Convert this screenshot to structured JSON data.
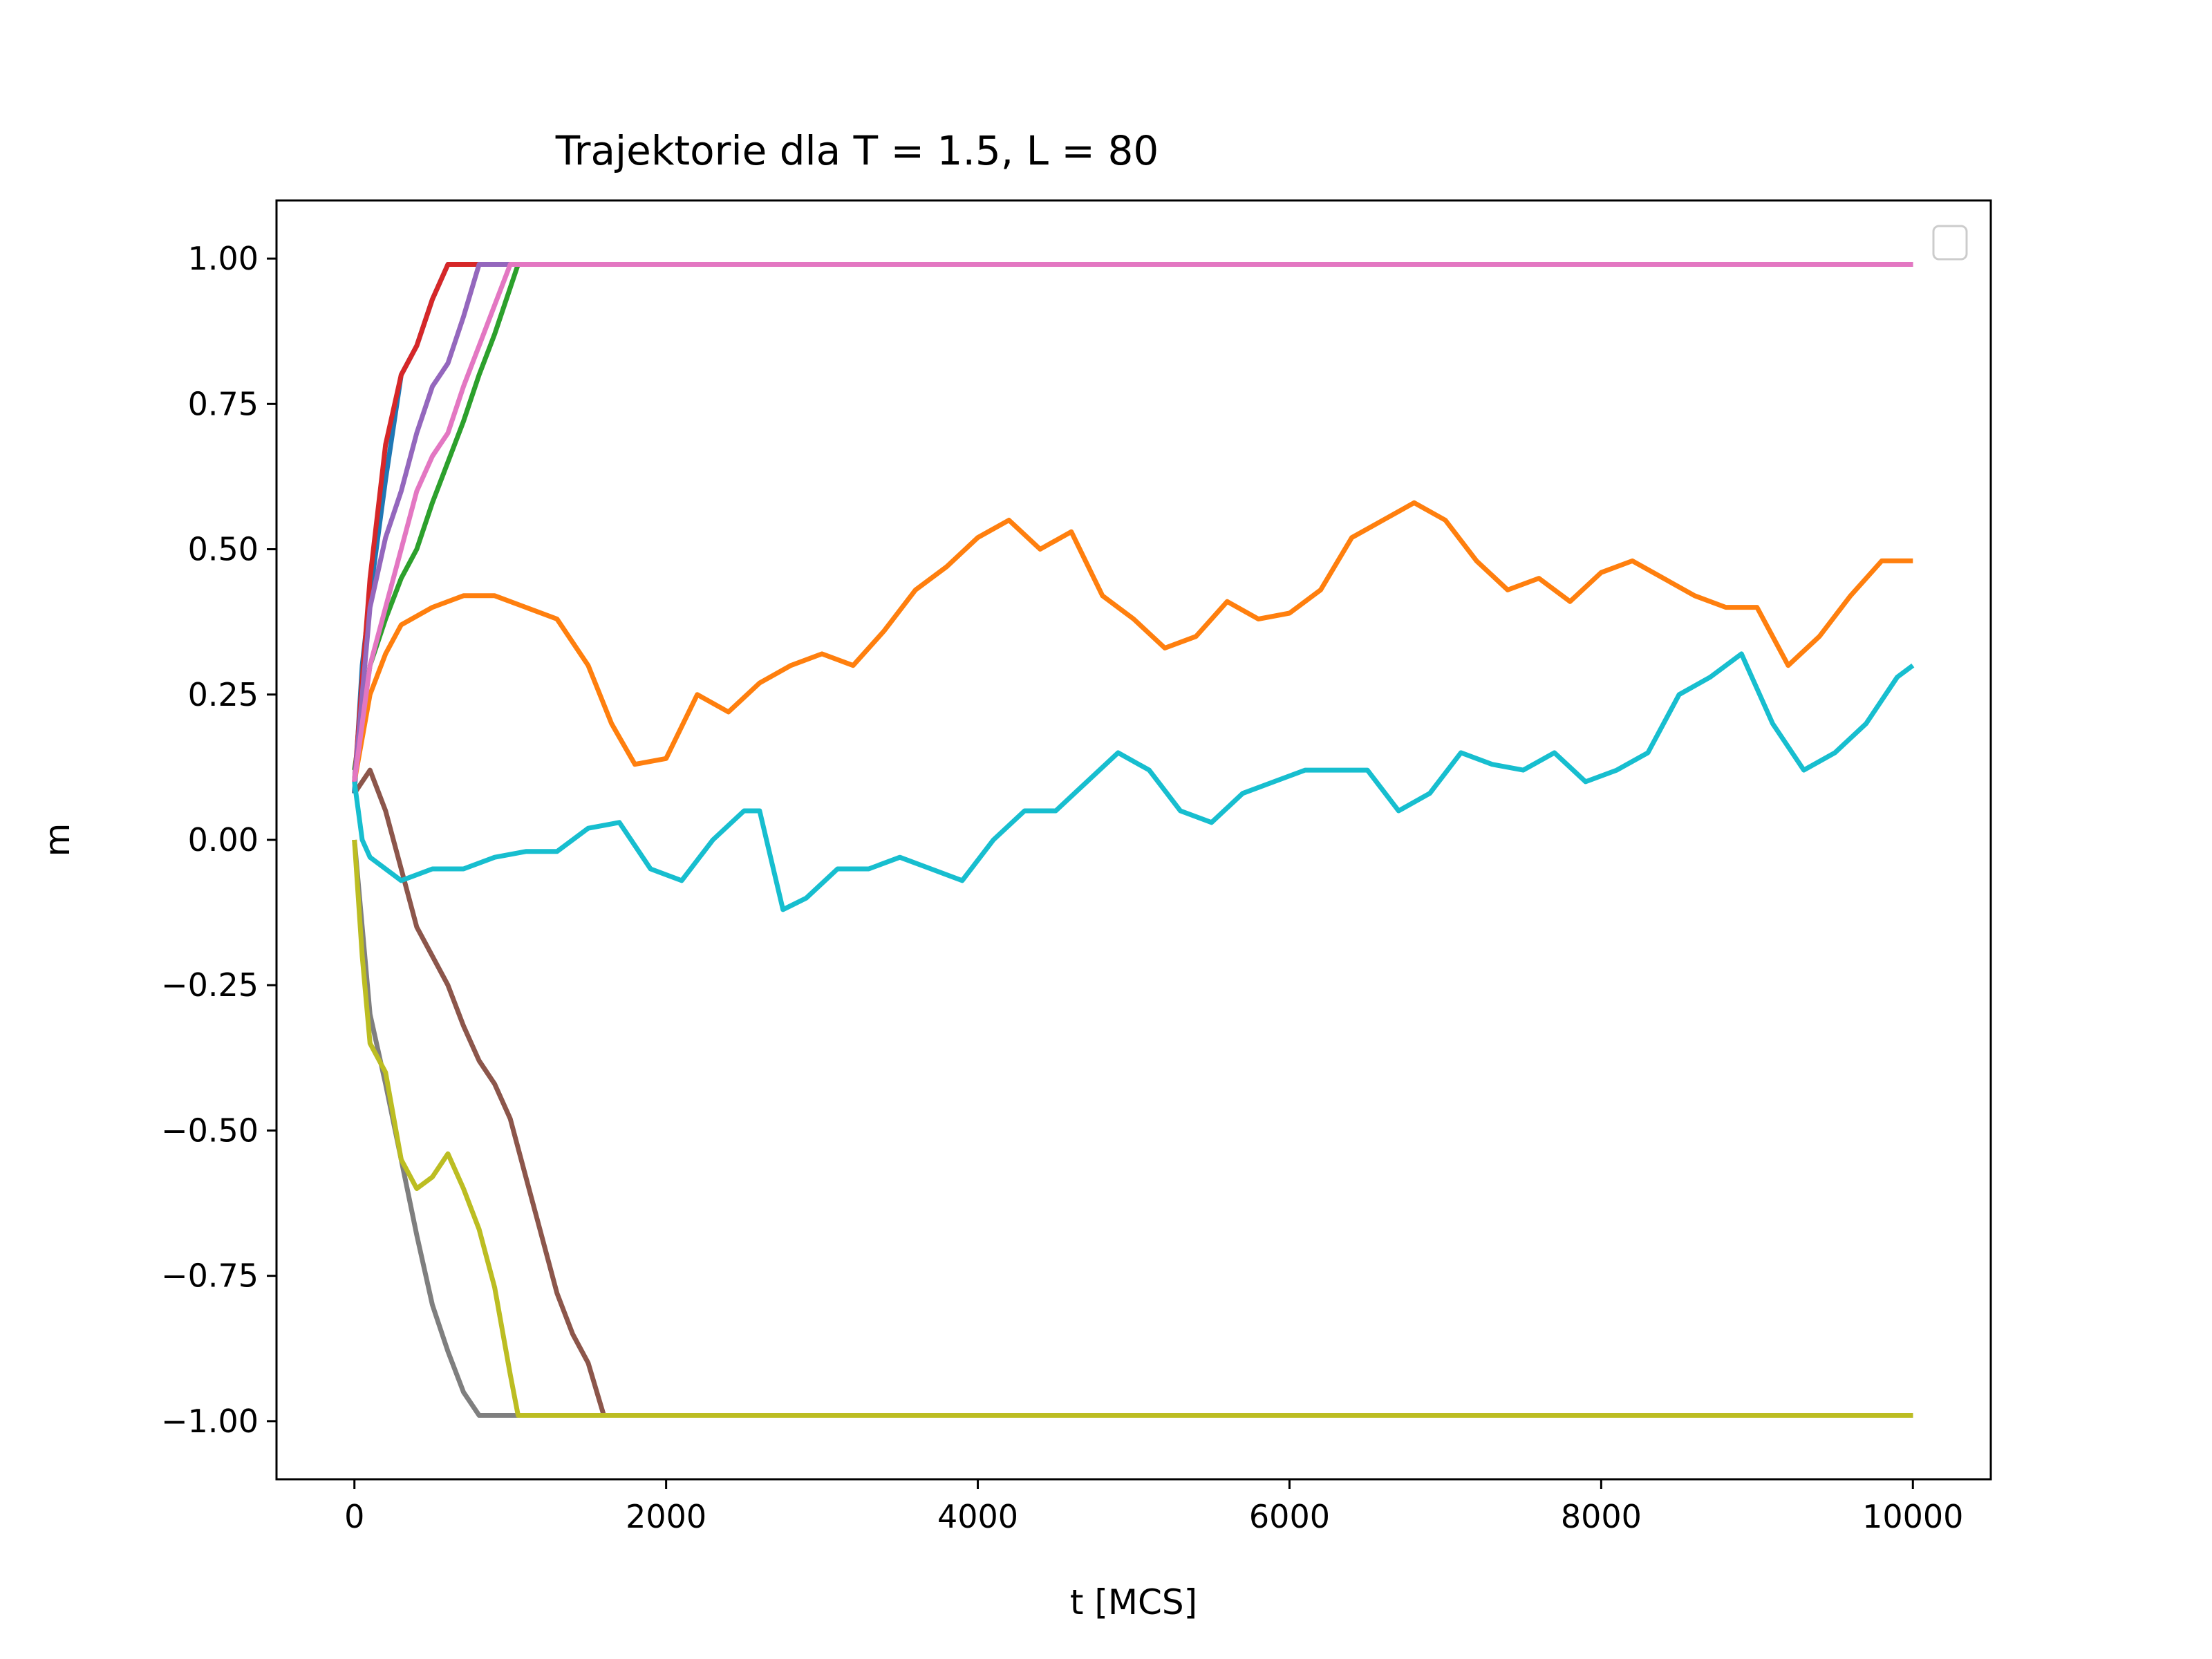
{
  "chart_data": {
    "type": "line",
    "title": "Trajektorie dla T = 1.5, L = 80",
    "xlabel": "t [MCS]",
    "ylabel": "m",
    "xlim": [
      -500,
      10500
    ],
    "ylim": [
      -1.1,
      1.1
    ],
    "xticks": [
      0,
      2000,
      4000,
      6000,
      8000,
      10000
    ],
    "xtick_labels": [
      "0",
      "2000",
      "4000",
      "6000",
      "8000",
      "10000"
    ],
    "yticks": [
      1.0,
      0.75,
      0.5,
      0.25,
      0.0,
      -0.25,
      -0.5,
      -0.75,
      -1.0
    ],
    "ytick_labels": [
      "1.00",
      "0.75",
      "0.50",
      "0.25",
      "0.00",
      "−0.25",
      "−0.50",
      "−0.75",
      "−1.00"
    ],
    "grid": false,
    "legend": "top-right (empty)",
    "series": [
      {
        "color": "#1f77b4",
        "points": [
          [
            0,
            0.08
          ],
          [
            50,
            0.3
          ],
          [
            100,
            0.42
          ],
          [
            200,
            0.62
          ],
          [
            300,
            0.8
          ],
          [
            400,
            0.85
          ],
          [
            500,
            0.93
          ],
          [
            600,
            0.99
          ],
          [
            10000,
            0.99
          ]
        ]
      },
      {
        "color": "#ff7f0e",
        "points": [
          [
            0,
            0.1
          ],
          [
            100,
            0.25
          ],
          [
            200,
            0.32
          ],
          [
            300,
            0.37
          ],
          [
            500,
            0.4
          ],
          [
            700,
            0.42
          ],
          [
            900,
            0.42
          ],
          [
            1100,
            0.4
          ],
          [
            1300,
            0.38
          ],
          [
            1500,
            0.3
          ],
          [
            1650,
            0.2
          ],
          [
            1800,
            0.13
          ],
          [
            2000,
            0.14
          ],
          [
            2200,
            0.25
          ],
          [
            2400,
            0.22
          ],
          [
            2600,
            0.27
          ],
          [
            2800,
            0.3
          ],
          [
            3000,
            0.32
          ],
          [
            3200,
            0.3
          ],
          [
            3400,
            0.36
          ],
          [
            3600,
            0.43
          ],
          [
            3800,
            0.47
          ],
          [
            4000,
            0.52
          ],
          [
            4200,
            0.55
          ],
          [
            4400,
            0.5
          ],
          [
            4600,
            0.53
          ],
          [
            4800,
            0.42
          ],
          [
            5000,
            0.38
          ],
          [
            5200,
            0.33
          ],
          [
            5400,
            0.35
          ],
          [
            5600,
            0.41
          ],
          [
            5800,
            0.38
          ],
          [
            6000,
            0.39
          ],
          [
            6200,
            0.43
          ],
          [
            6400,
            0.52
          ],
          [
            6600,
            0.55
          ],
          [
            6800,
            0.58
          ],
          [
            7000,
            0.55
          ],
          [
            7200,
            0.48
          ],
          [
            7400,
            0.43
          ],
          [
            7600,
            0.45
          ],
          [
            7800,
            0.41
          ],
          [
            8000,
            0.46
          ],
          [
            8200,
            0.48
          ],
          [
            8400,
            0.45
          ],
          [
            8600,
            0.42
          ],
          [
            8800,
            0.4
          ],
          [
            9000,
            0.4
          ],
          [
            9200,
            0.3
          ],
          [
            9400,
            0.35
          ],
          [
            9600,
            0.42
          ],
          [
            9800,
            0.48
          ],
          [
            10000,
            0.48
          ]
        ]
      },
      {
        "color": "#2ca02c",
        "points": [
          [
            0,
            0.12
          ],
          [
            100,
            0.3
          ],
          [
            200,
            0.38
          ],
          [
            300,
            0.45
          ],
          [
            400,
            0.5
          ],
          [
            500,
            0.58
          ],
          [
            600,
            0.65
          ],
          [
            700,
            0.72
          ],
          [
            800,
            0.8
          ],
          [
            900,
            0.87
          ],
          [
            1000,
            0.95
          ],
          [
            1050,
            0.99
          ],
          [
            10000,
            0.99
          ]
        ]
      },
      {
        "color": "#d62728",
        "points": [
          [
            0,
            0.1
          ],
          [
            100,
            0.45
          ],
          [
            200,
            0.68
          ],
          [
            300,
            0.8
          ],
          [
            400,
            0.85
          ],
          [
            500,
            0.93
          ],
          [
            600,
            0.99
          ],
          [
            10000,
            0.99
          ]
        ]
      },
      {
        "color": "#9467bd",
        "points": [
          [
            0,
            0.1
          ],
          [
            100,
            0.4
          ],
          [
            200,
            0.52
          ],
          [
            300,
            0.6
          ],
          [
            400,
            0.7
          ],
          [
            500,
            0.78
          ],
          [
            600,
            0.82
          ],
          [
            700,
            0.9
          ],
          [
            800,
            0.99
          ],
          [
            10000,
            0.99
          ]
        ]
      },
      {
        "color": "#8c564b",
        "points": [
          [
            0,
            0.08
          ],
          [
            100,
            0.12
          ],
          [
            200,
            0.05
          ],
          [
            300,
            -0.05
          ],
          [
            400,
            -0.15
          ],
          [
            500,
            -0.2
          ],
          [
            600,
            -0.25
          ],
          [
            700,
            -0.32
          ],
          [
            800,
            -0.38
          ],
          [
            900,
            -0.42
          ],
          [
            1000,
            -0.48
          ],
          [
            1100,
            -0.58
          ],
          [
            1200,
            -0.68
          ],
          [
            1300,
            -0.78
          ],
          [
            1400,
            -0.85
          ],
          [
            1500,
            -0.9
          ],
          [
            1600,
            -0.99
          ],
          [
            10000,
            -0.99
          ]
        ]
      },
      {
        "color": "#e377c2",
        "points": [
          [
            0,
            0.1
          ],
          [
            100,
            0.3
          ],
          [
            200,
            0.4
          ],
          [
            300,
            0.5
          ],
          [
            400,
            0.6
          ],
          [
            500,
            0.66
          ],
          [
            600,
            0.7
          ],
          [
            700,
            0.78
          ],
          [
            800,
            0.85
          ],
          [
            900,
            0.92
          ],
          [
            1000,
            0.99
          ],
          [
            10000,
            0.99
          ]
        ]
      },
      {
        "color": "#7f7f7f",
        "points": [
          [
            0,
            0.0
          ],
          [
            50,
            -0.15
          ],
          [
            100,
            -0.3
          ],
          [
            200,
            -0.42
          ],
          [
            300,
            -0.55
          ],
          [
            400,
            -0.68
          ],
          [
            500,
            -0.8
          ],
          [
            600,
            -0.88
          ],
          [
            700,
            -0.95
          ],
          [
            800,
            -0.99
          ],
          [
            10000,
            -0.99
          ]
        ]
      },
      {
        "color": "#bcbd22",
        "points": [
          [
            0,
            0.0
          ],
          [
            50,
            -0.2
          ],
          [
            100,
            -0.35
          ],
          [
            200,
            -0.4
          ],
          [
            300,
            -0.55
          ],
          [
            400,
            -0.6
          ],
          [
            500,
            -0.58
          ],
          [
            600,
            -0.54
          ],
          [
            700,
            -0.6
          ],
          [
            800,
            -0.67
          ],
          [
            900,
            -0.77
          ],
          [
            1000,
            -0.92
          ],
          [
            1050,
            -0.99
          ],
          [
            10000,
            -0.99
          ]
        ]
      },
      {
        "color": "#17becf",
        "points": [
          [
            0,
            0.1
          ],
          [
            50,
            0.0
          ],
          [
            100,
            -0.03
          ],
          [
            300,
            -0.07
          ],
          [
            500,
            -0.05
          ],
          [
            700,
            -0.05
          ],
          [
            900,
            -0.03
          ],
          [
            1100,
            -0.02
          ],
          [
            1300,
            -0.02
          ],
          [
            1500,
            0.02
          ],
          [
            1700,
            0.03
          ],
          [
            1900,
            -0.05
          ],
          [
            2100,
            -0.07
          ],
          [
            2300,
            0.0
          ],
          [
            2500,
            0.05
          ],
          [
            2600,
            0.05
          ],
          [
            2750,
            -0.12
          ],
          [
            2900,
            -0.1
          ],
          [
            3100,
            -0.05
          ],
          [
            3300,
            -0.05
          ],
          [
            3500,
            -0.03
          ],
          [
            3700,
            -0.05
          ],
          [
            3900,
            -0.07
          ],
          [
            4100,
            0.0
          ],
          [
            4300,
            0.05
          ],
          [
            4500,
            0.05
          ],
          [
            4700,
            0.1
          ],
          [
            4900,
            0.15
          ],
          [
            5100,
            0.12
          ],
          [
            5300,
            0.05
          ],
          [
            5500,
            0.03
          ],
          [
            5700,
            0.08
          ],
          [
            5900,
            0.1
          ],
          [
            6100,
            0.12
          ],
          [
            6300,
            0.12
          ],
          [
            6500,
            0.12
          ],
          [
            6700,
            0.05
          ],
          [
            6900,
            0.08
          ],
          [
            7100,
            0.15
          ],
          [
            7300,
            0.13
          ],
          [
            7500,
            0.12
          ],
          [
            7700,
            0.15
          ],
          [
            7900,
            0.1
          ],
          [
            8100,
            0.12
          ],
          [
            8300,
            0.15
          ],
          [
            8500,
            0.25
          ],
          [
            8700,
            0.28
          ],
          [
            8900,
            0.32
          ],
          [
            9100,
            0.2
          ],
          [
            9300,
            0.12
          ],
          [
            9500,
            0.15
          ],
          [
            9700,
            0.2
          ],
          [
            9900,
            0.28
          ],
          [
            10000,
            0.3
          ]
        ]
      }
    ]
  }
}
